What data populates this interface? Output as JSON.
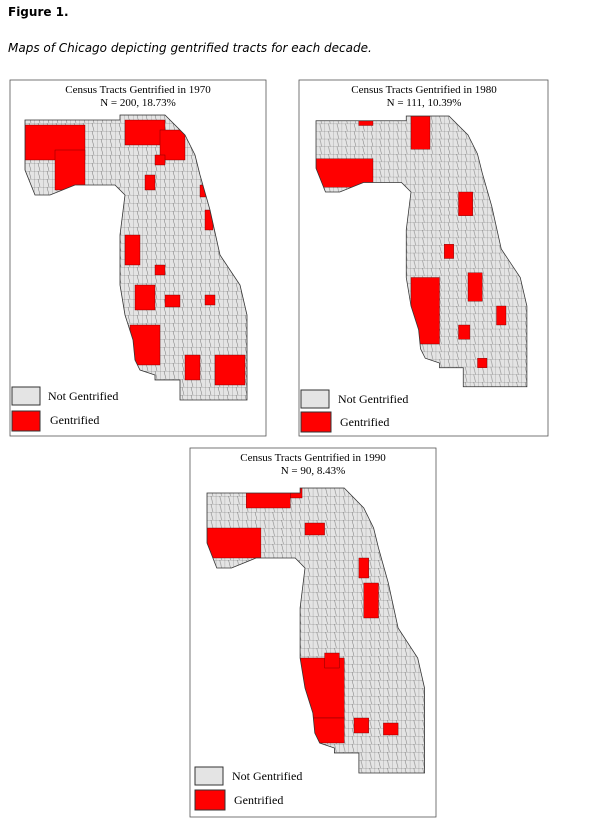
{
  "figure_label": "Figure 1.",
  "caption": "Maps of Chicago depicting gentrified tracts for each decade.",
  "maps": [
    {
      "title": "Census Tracts Gentrified in 1970",
      "subtitle": "N = 200, 18.73%",
      "legend": [
        "Not Gentrified",
        "Gentrified"
      ]
    },
    {
      "title": "Census Tracts Gentrified in 1980",
      "subtitle": "N = 111, 10.39%",
      "legend": [
        "Not Gentrified",
        "Gentrified"
      ]
    },
    {
      "title": "Census Tracts Gentrified in 1990",
      "subtitle": "N = 90, 8.43%",
      "legend": [
        "Not Gentrified",
        "Gentrified"
      ]
    }
  ]
}
